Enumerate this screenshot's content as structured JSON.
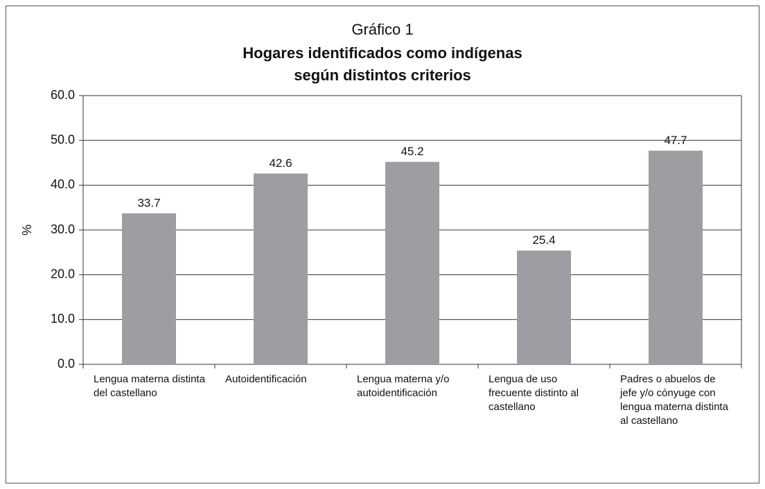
{
  "chart_data": {
    "type": "bar",
    "title": "Gráfico 1",
    "subtitle": [
      "Hogares identificados como indígenas",
      "según distintos  criterios"
    ],
    "y_label": "%",
    "categories": [
      "Lengua materna distinta del castellano",
      "Autoidentificación",
      "Lengua materna y/o autoidentificación",
      "Lengua de uso frecuente distinto al castellano",
      "Padres o abuelos de jefe y/o cónyuge con lengua materna distinta al castellano"
    ],
    "values": [
      33.7,
      42.6,
      45.2,
      25.4,
      47.7
    ],
    "color": "#9d9ea2",
    "ylim": [
      0,
      60
    ],
    "yticks": [
      {
        "value": 0,
        "label": "0.0"
      },
      {
        "value": 10,
        "label": "10.0"
      },
      {
        "value": 20,
        "label": "20.0"
      },
      {
        "value": 30,
        "label": "30.0"
      },
      {
        "value": 40,
        "label": "40.0"
      },
      {
        "value": 50,
        "label": "50.0"
      },
      {
        "value": 60,
        "label": "60.0"
      }
    ],
    "grid": true
  }
}
